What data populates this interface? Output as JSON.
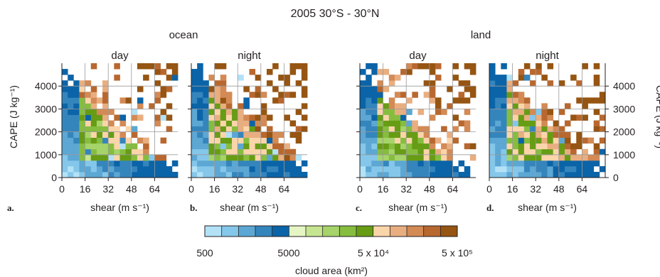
{
  "figure": {
    "title": "2005 30°S - 30°N",
    "groups": [
      {
        "label": "ocean"
      },
      {
        "label": "land"
      }
    ],
    "colorbar": {
      "label": "cloud area (km²)",
      "ticks": [
        "500",
        "5000",
        "5 x 10⁴",
        "5 x 10⁵"
      ],
      "colors": [
        "#b3e2f7",
        "#85c7ea",
        "#5ca7d3",
        "#3585bd",
        "#0b64a8",
        "#e6f5c4",
        "#c6e591",
        "#a6d36a",
        "#86bd3f",
        "#679c15",
        "#fbd5aa",
        "#e9ae80",
        "#d38a55",
        "#b8682f",
        "#965512"
      ]
    }
  },
  "chart_data": [
    {
      "type": "heatmap",
      "panel": "a",
      "group": "ocean",
      "title": "day",
      "xlabel": "shear (m s⁻¹)",
      "ylabel": "CAPE (J kg⁻¹)",
      "xlim": [
        0,
        80
      ],
      "ylim": [
        0,
        5000
      ],
      "xticks": [
        "0",
        "16",
        "32",
        "48",
        "64"
      ],
      "yticks": [
        "0",
        "1000",
        "2000",
        "3000",
        "4000"
      ],
      "grid": true,
      "cell_size": {
        "shear": 4,
        "cape": 250
      },
      "scale": "log",
      "values": "cloud area per cell, 500 to 5x10^5 km² (log color scale)"
    },
    {
      "type": "heatmap",
      "panel": "b",
      "group": "ocean",
      "title": "night",
      "xlabel": "shear (m s⁻¹)",
      "ylabel": "",
      "xlim": [
        0,
        80
      ],
      "ylim": [
        0,
        5000
      ],
      "xticks": [
        "0",
        "16",
        "32",
        "48",
        "64"
      ],
      "yticks": [],
      "grid": true,
      "cell_size": {
        "shear": 4,
        "cape": 250
      },
      "scale": "log"
    },
    {
      "type": "heatmap",
      "panel": "c",
      "group": "land",
      "title": "day",
      "xlabel": "shear (m s⁻¹)",
      "ylabel": "",
      "xlim": [
        0,
        80
      ],
      "ylim": [
        0,
        5000
      ],
      "xticks": [
        "0",
        "16",
        "32",
        "48",
        "64"
      ],
      "yticks": [],
      "grid": true,
      "cell_size": {
        "shear": 4,
        "cape": 250
      },
      "scale": "log"
    },
    {
      "type": "heatmap",
      "panel": "d",
      "group": "land",
      "title": "night",
      "xlabel": "shear (m s⁻¹)",
      "ylabel": "CAPE (J kg⁻¹)",
      "xlim": [
        0,
        80
      ],
      "ylim": [
        0,
        5000
      ],
      "xticks": [
        "0",
        "16",
        "32",
        "48",
        "64"
      ],
      "yticks": [
        "0",
        "1000",
        "2000",
        "3000",
        "4000"
      ],
      "ylabel_side": "right",
      "grid": true,
      "cell_size": {
        "shear": 4,
        "cape": 250
      },
      "scale": "log"
    }
  ]
}
